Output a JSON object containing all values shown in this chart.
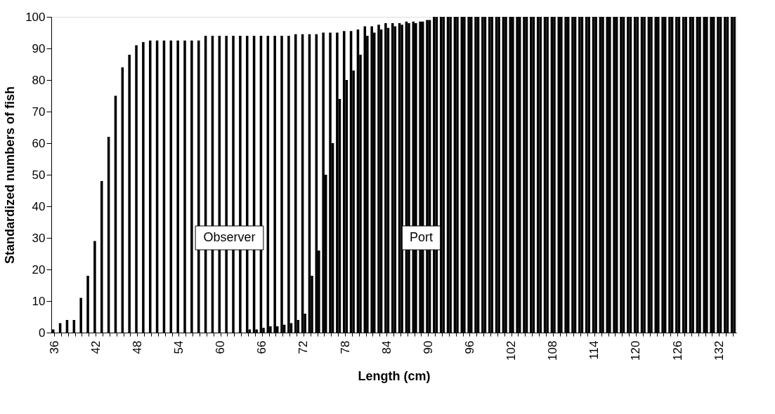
{
  "chart_data": {
    "type": "bar",
    "xlabel": "Length (cm)",
    "ylabel": "Standardized numbers of fish",
    "categories": [
      "36",
      null,
      null,
      null,
      null,
      null,
      "42",
      null,
      null,
      null,
      null,
      null,
      "48",
      null,
      null,
      null,
      null,
      null,
      "54",
      null,
      null,
      null,
      null,
      null,
      "60",
      null,
      null,
      null,
      null,
      null,
      "66",
      null,
      null,
      null,
      null,
      null,
      "72",
      null,
      null,
      null,
      null,
      null,
      "78",
      null,
      null,
      null,
      null,
      null,
      "84",
      null,
      null,
      null,
      null,
      null,
      "90",
      null,
      null,
      null,
      null,
      null,
      "96",
      null,
      null,
      null,
      null,
      null,
      "102",
      null,
      null,
      null,
      null,
      null,
      "108",
      null,
      null,
      null,
      null,
      null,
      "114",
      null,
      null,
      null,
      null,
      null,
      "120",
      null,
      null,
      null,
      null,
      null,
      "126",
      null,
      null,
      null,
      null,
      null,
      "132",
      null,
      null
    ],
    "series": [
      {
        "name": "Observer",
        "color": "#000000",
        "values": [
          1,
          3,
          4,
          4,
          11,
          18,
          29,
          48,
          62,
          75,
          84,
          88,
          91,
          92,
          92.5,
          92.5,
          92.5,
          92.5,
          92.5,
          92.5,
          92.5,
          92.5,
          94,
          94,
          94,
          94,
          94,
          94,
          94,
          94,
          94,
          94,
          94,
          94,
          94,
          94.5,
          94.5,
          94.5,
          94.5,
          95,
          95,
          95,
          95.5,
          95.5,
          96,
          97,
          97,
          97.5,
          98,
          98,
          98,
          98.5,
          98.5,
          98.5,
          99,
          100,
          100,
          100,
          100,
          100,
          100,
          100,
          100,
          100,
          100,
          100,
          100,
          100,
          100,
          100,
          100,
          100,
          100,
          100,
          100,
          100,
          100,
          100,
          100,
          100,
          100,
          100,
          100,
          100,
          100,
          100,
          100,
          100,
          100,
          100,
          100,
          100,
          100,
          100,
          100,
          100,
          100,
          100,
          100
        ]
      },
      {
        "name": "Port",
        "color": "#000000",
        "values": [
          0,
          0,
          0,
          0,
          0,
          0,
          0,
          0,
          0,
          0,
          0,
          0,
          0,
          0,
          0,
          0,
          0,
          0,
          0,
          0,
          0,
          0,
          0,
          0,
          0,
          0,
          0,
          0,
          1,
          1,
          1.5,
          2,
          2,
          2.5,
          3,
          4,
          6,
          18,
          26,
          50,
          60,
          74,
          80,
          83,
          88,
          94,
          95,
          96,
          96.5,
          97,
          97.5,
          98,
          98,
          98.5,
          99,
          100,
          100,
          100,
          100,
          100,
          100,
          100,
          100,
          100,
          100,
          100,
          100,
          100,
          100,
          100,
          100,
          100,
          100,
          100,
          100,
          100,
          100,
          100,
          100,
          100,
          100,
          100,
          100,
          100,
          100,
          100,
          100,
          100,
          100,
          100,
          100,
          100,
          100,
          100,
          100,
          100,
          100,
          100,
          100
        ]
      }
    ],
    "ylim": [
      0,
      100
    ],
    "yticks": [
      0,
      10,
      20,
      30,
      40,
      50,
      60,
      70,
      80,
      90,
      100
    ],
    "grid": false,
    "legend": false
  }
}
